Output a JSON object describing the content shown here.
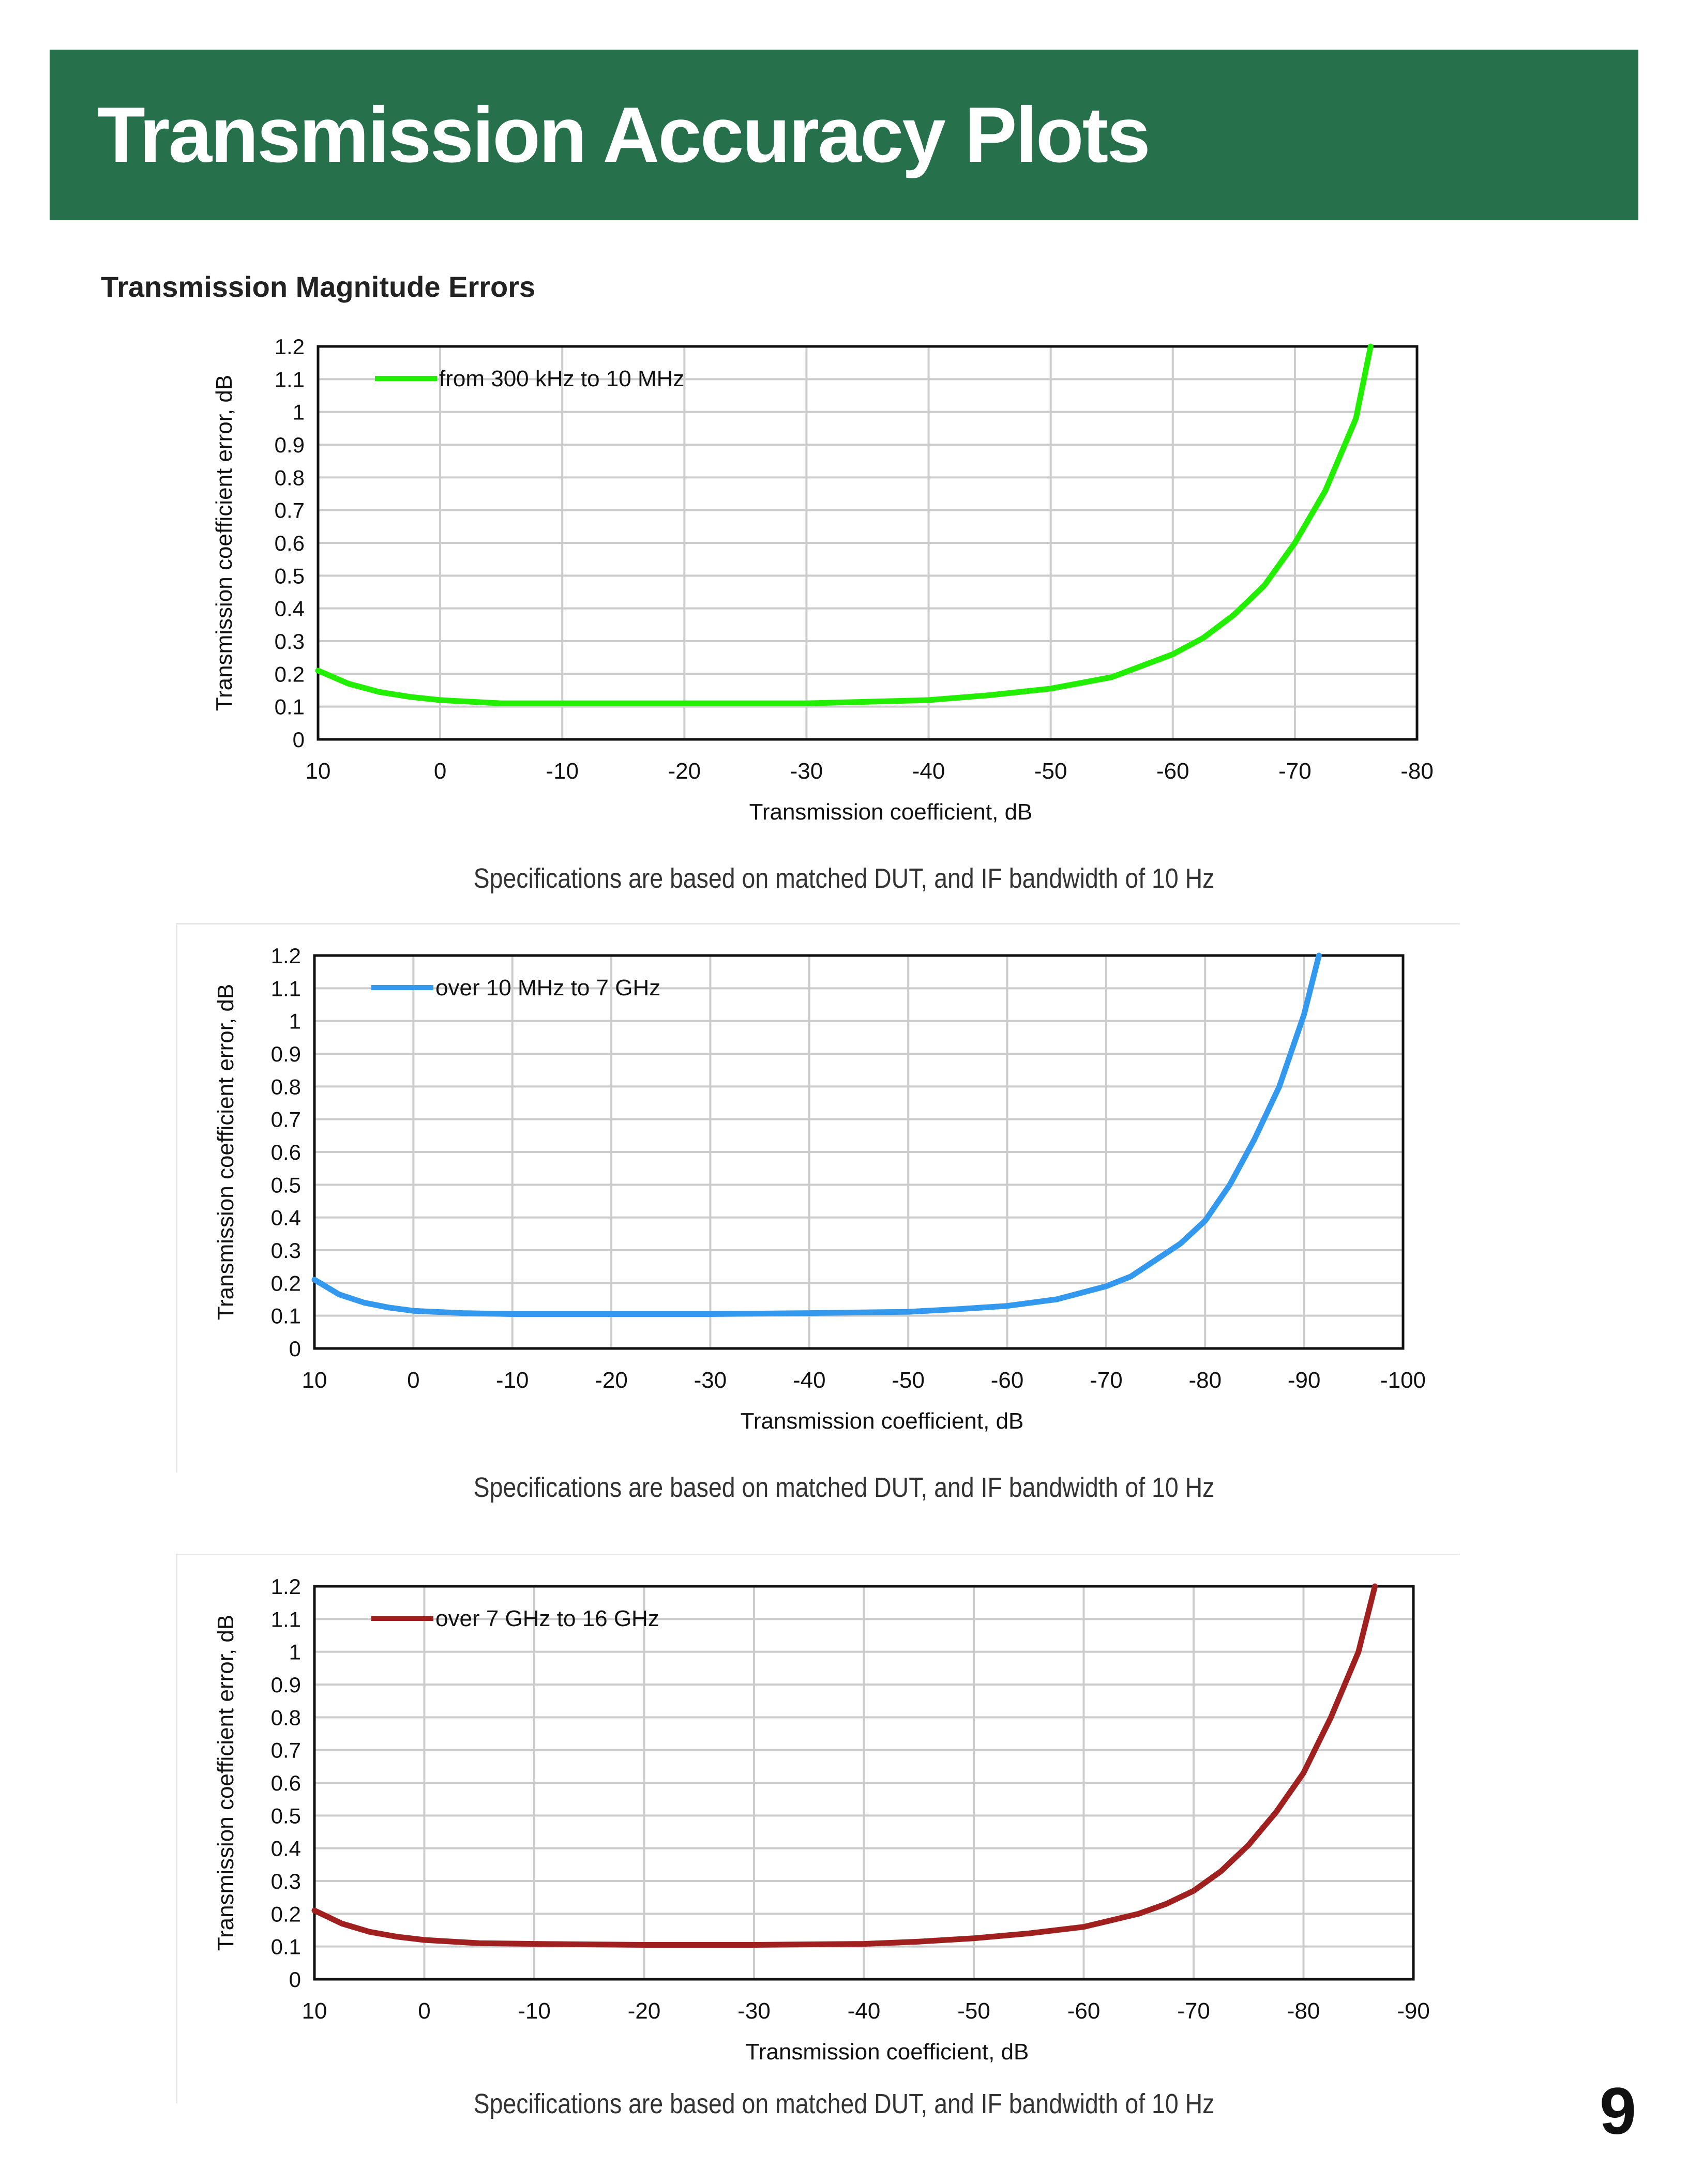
{
  "header": {
    "title": "Transmission Accuracy Plots"
  },
  "section_title": "Transmission Magnitude Errors",
  "page_number": "9",
  "colors": {
    "banner": "#26704b",
    "series1": "#22ee00",
    "series2": "#3399ee",
    "series3": "#a01f1f"
  },
  "chart_data": [
    {
      "type": "line",
      "xlabel": "Transmission coefficient, dB",
      "ylabel": "Transmission coefficient error, dB",
      "xlim": [
        10,
        -80
      ],
      "ylim": [
        0,
        1.2
      ],
      "x_ticks": [
        "10",
        "0",
        "-10",
        "-20",
        "-30",
        "-40",
        "-50",
        "-60",
        "-70",
        "-80"
      ],
      "y_ticks": [
        "0",
        "0.1",
        "0.2",
        "0.3",
        "0.4",
        "0.5",
        "0.6",
        "0.7",
        "0.8",
        "0.9",
        "1",
        "1.1",
        "1.2"
      ],
      "grid": true,
      "legend_position": "top-left",
      "series": [
        {
          "name": "from 300 kHz to 10 MHz",
          "color": "#22ee00",
          "x": [
            10,
            7.5,
            5,
            2.5,
            0,
            -5,
            -10,
            -20,
            -30,
            -35,
            -40,
            -45,
            -50,
            -55,
            -60,
            -62.5,
            -65,
            -67.5,
            -70,
            -72.5,
            -75,
            -76.2
          ],
          "y": [
            0.21,
            0.17,
            0.145,
            0.13,
            0.12,
            0.11,
            0.11,
            0.11,
            0.11,
            0.115,
            0.12,
            0.135,
            0.155,
            0.19,
            0.26,
            0.31,
            0.38,
            0.47,
            0.6,
            0.76,
            0.98,
            1.2
          ]
        }
      ],
      "caption": "Specifications are based on matched DUT, and IF bandwidth of 10 Hz"
    },
    {
      "type": "line",
      "xlabel": "Transmission coefficient, dB",
      "ylabel": "Transmission coefficient error, dB",
      "xlim": [
        10,
        -100
      ],
      "ylim": [
        0,
        1.2
      ],
      "x_ticks": [
        "10",
        "0",
        "-10",
        "-20",
        "-30",
        "-40",
        "-50",
        "-60",
        "-70",
        "-80",
        "-90",
        "-100"
      ],
      "y_ticks": [
        "0",
        "0.1",
        "0.2",
        "0.3",
        "0.4",
        "0.5",
        "0.6",
        "0.7",
        "0.8",
        "0.9",
        "1",
        "1.1",
        "1.2"
      ],
      "grid": true,
      "legend_position": "top-left",
      "series": [
        {
          "name": "over 10 MHz to 7 GHz",
          "color": "#3399ee",
          "x": [
            10,
            7.5,
            5,
            2.5,
            0,
            -5,
            -10,
            -20,
            -30,
            -40,
            -50,
            -55,
            -60,
            -65,
            -70,
            -72.5,
            -75,
            -77.5,
            -80,
            -82.5,
            -85,
            -87.5,
            -90,
            -91.5
          ],
          "y": [
            0.21,
            0.165,
            0.14,
            0.125,
            0.115,
            0.108,
            0.105,
            0.105,
            0.105,
            0.108,
            0.112,
            0.12,
            0.13,
            0.15,
            0.19,
            0.22,
            0.27,
            0.32,
            0.39,
            0.5,
            0.64,
            0.8,
            1.02,
            1.2
          ]
        }
      ],
      "caption": "Specifications are based on matched DUT, and IF bandwidth of 10 Hz"
    },
    {
      "type": "line",
      "xlabel": "Transmission coefficient, dB",
      "ylabel": "Transmission coefficient error, dB",
      "xlim": [
        10,
        -90
      ],
      "ylim": [
        0,
        1.2
      ],
      "x_ticks": [
        "10",
        "0",
        "-10",
        "-20",
        "-30",
        "-40",
        "-50",
        "-60",
        "-70",
        "-80",
        "-90"
      ],
      "y_ticks": [
        "0",
        "0.1",
        "0.2",
        "0.3",
        "0.4",
        "0.5",
        "0.6",
        "0.7",
        "0.8",
        "0.9",
        "1",
        "1.1",
        "1.2"
      ],
      "grid": true,
      "legend_position": "top-left",
      "series": [
        {
          "name": "over 7 GHz to 16 GHz",
          "color": "#a01f1f",
          "x": [
            10,
            7.5,
            5,
            2.5,
            0,
            -5,
            -10,
            -20,
            -30,
            -40,
            -45,
            -50,
            -55,
            -60,
            -65,
            -67.5,
            -70,
            -72.5,
            -75,
            -77.5,
            -80,
            -82.5,
            -85,
            -86.5
          ],
          "y": [
            0.21,
            0.17,
            0.145,
            0.13,
            0.12,
            0.11,
            0.108,
            0.105,
            0.105,
            0.108,
            0.115,
            0.125,
            0.14,
            0.16,
            0.2,
            0.23,
            0.27,
            0.33,
            0.41,
            0.51,
            0.63,
            0.8,
            1.0,
            1.2
          ]
        }
      ],
      "caption": "Specifications are based on matched DUT, and IF bandwidth of 10 Hz"
    }
  ]
}
